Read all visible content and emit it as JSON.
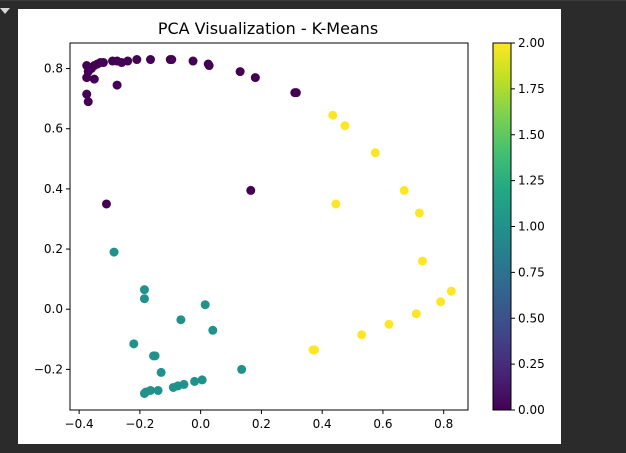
{
  "chart_data": {
    "type": "scatter",
    "title": "PCA Visualization - K-Means",
    "xlabel": "",
    "ylabel": "",
    "xlim": [
      -0.43,
      0.88
    ],
    "ylim": [
      -0.335,
      0.885
    ],
    "xticks": [
      -0.4,
      -0.2,
      0.0,
      0.2,
      0.4,
      0.6,
      0.8
    ],
    "xtick_labels": [
      "−0.4",
      "−0.2",
      "0.0",
      "0.2",
      "0.4",
      "0.6",
      "0.8"
    ],
    "yticks": [
      -0.2,
      0.0,
      0.2,
      0.4,
      0.6,
      0.8
    ],
    "ytick_labels": [
      "−0.2",
      "0.0",
      "0.2",
      "0.4",
      "0.6",
      "0.8"
    ],
    "grid": false,
    "colormap": "viridis",
    "colors": {
      "cluster0": "#440154",
      "cluster1": "#21918c",
      "cluster2": "#fde725"
    },
    "colorbar": {
      "min": 0.0,
      "max": 2.0,
      "ticks": [
        0.0,
        0.25,
        0.5,
        0.75,
        1.0,
        1.25,
        1.5,
        1.75,
        2.0
      ],
      "tick_labels": [
        "0.00",
        "0.25",
        "0.50",
        "0.75",
        "1.00",
        "1.25",
        "1.50",
        "1.75",
        "2.00"
      ]
    },
    "series": [
      {
        "cluster": 0,
        "points": [
          [
            -0.375,
            0.81
          ],
          [
            -0.37,
            0.79
          ],
          [
            -0.375,
            0.77
          ],
          [
            -0.36,
            0.8
          ],
          [
            -0.35,
            0.81
          ],
          [
            -0.34,
            0.815
          ],
          [
            -0.33,
            0.82
          ],
          [
            -0.32,
            0.82
          ],
          [
            -0.29,
            0.825
          ],
          [
            -0.275,
            0.825
          ],
          [
            -0.26,
            0.82
          ],
          [
            -0.24,
            0.825
          ],
          [
            -0.21,
            0.83
          ],
          [
            -0.165,
            0.83
          ],
          [
            -0.1,
            0.83
          ],
          [
            -0.095,
            0.83
          ],
          [
            -0.025,
            0.825
          ],
          [
            0.025,
            0.815
          ],
          [
            0.028,
            0.81
          ],
          [
            0.13,
            0.79
          ],
          [
            0.18,
            0.77
          ],
          [
            0.31,
            0.72
          ],
          [
            0.315,
            0.72
          ],
          [
            -0.35,
            0.765
          ],
          [
            -0.375,
            0.715
          ],
          [
            -0.37,
            0.69
          ],
          [
            -0.275,
            0.745
          ],
          [
            -0.31,
            0.35
          ],
          [
            0.165,
            0.395
          ]
        ]
      },
      {
        "cluster": 1,
        "points": [
          [
            -0.285,
            0.19
          ],
          [
            -0.185,
            0.065
          ],
          [
            -0.185,
            0.035
          ],
          [
            0.015,
            0.015
          ],
          [
            -0.065,
            -0.035
          ],
          [
            0.04,
            -0.07
          ],
          [
            -0.22,
            -0.115
          ],
          [
            -0.155,
            -0.155
          ],
          [
            -0.15,
            -0.155
          ],
          [
            -0.13,
            -0.21
          ],
          [
            0.135,
            -0.2
          ],
          [
            -0.18,
            -0.275
          ],
          [
            -0.165,
            -0.27
          ],
          [
            -0.14,
            -0.27
          ],
          [
            -0.09,
            -0.26
          ],
          [
            -0.075,
            -0.255
          ],
          [
            -0.055,
            -0.25
          ],
          [
            -0.02,
            -0.24
          ],
          [
            0.005,
            -0.235
          ],
          [
            -0.185,
            -0.28
          ]
        ]
      },
      {
        "cluster": 2,
        "points": [
          [
            0.435,
            0.645
          ],
          [
            0.475,
            0.61
          ],
          [
            0.575,
            0.52
          ],
          [
            0.67,
            0.395
          ],
          [
            0.445,
            0.35
          ],
          [
            0.72,
            0.32
          ],
          [
            0.73,
            0.16
          ],
          [
            0.825,
            0.06
          ],
          [
            0.79,
            0.025
          ],
          [
            0.71,
            -0.015
          ],
          [
            0.62,
            -0.05
          ],
          [
            0.53,
            -0.085
          ],
          [
            0.375,
            -0.135
          ],
          [
            0.37,
            -0.135
          ]
        ]
      }
    ]
  }
}
